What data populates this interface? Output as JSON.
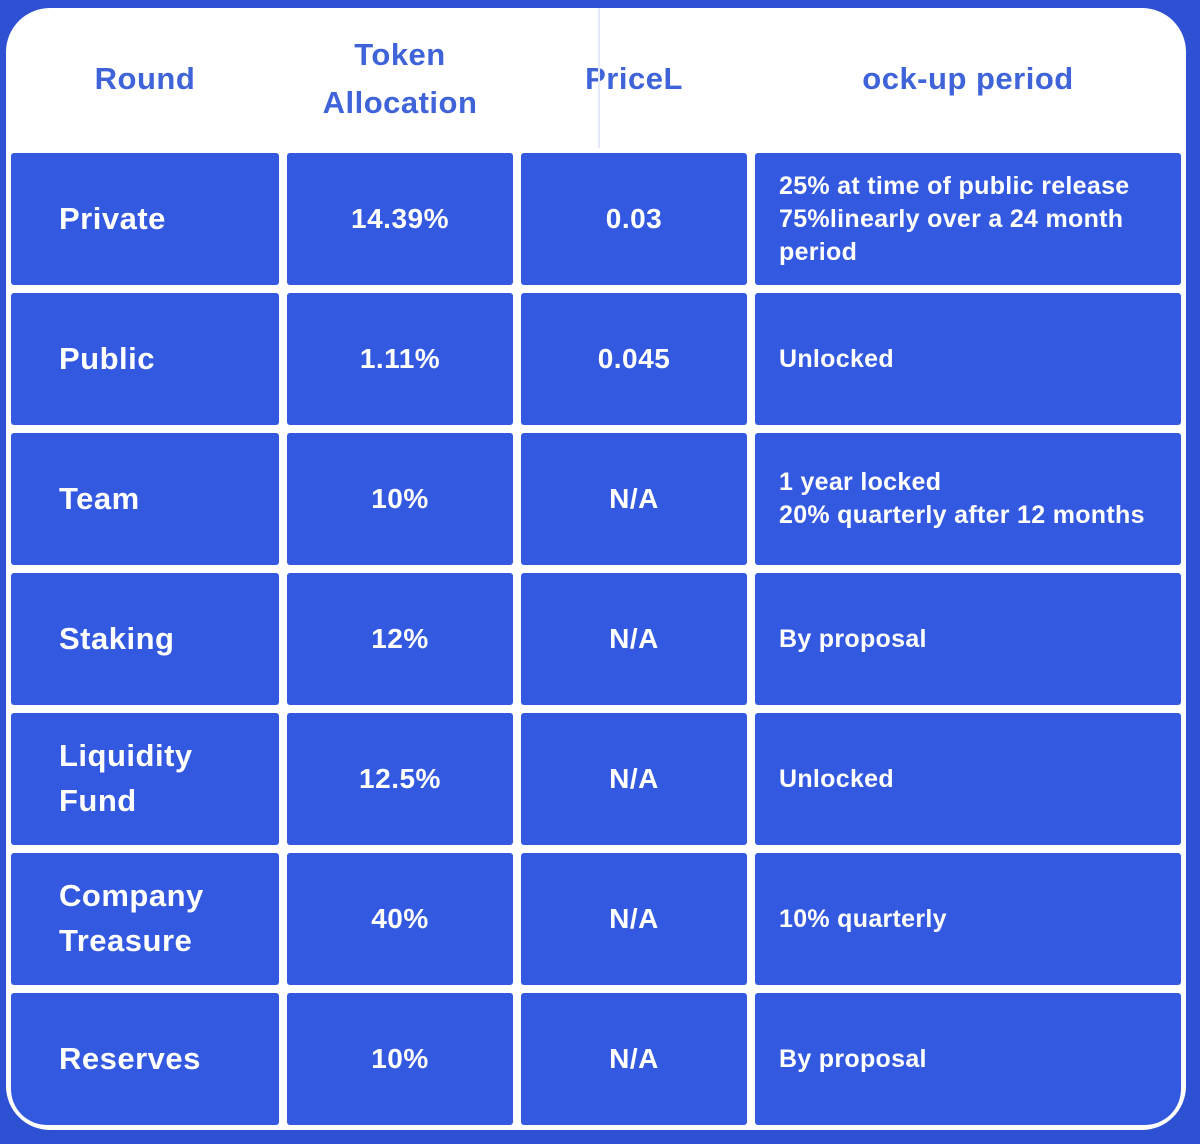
{
  "page": {
    "background_color": "#2e51d4",
    "panel_color": "#ffffff",
    "cell_color": "#3359e0",
    "header_text_color": "#3f63d8",
    "cell_text_color": "#ffffff"
  },
  "table": {
    "headers": {
      "round": "Round",
      "allocation": "Token\nAllocation",
      "price": "PriceL",
      "lockup": "ock-up period"
    },
    "rows": [
      {
        "round": "Private",
        "allocation": "14.39%",
        "price": "0.03",
        "lockup": "25% at time of public release\n75%linearly over a 24 month\nperiod"
      },
      {
        "round": "Public",
        "allocation": "1.11%",
        "price": "0.045",
        "lockup": "Unlocked"
      },
      {
        "round": "Team",
        "allocation": "10%",
        "price": "N/A",
        "lockup": "1 year locked\n20% quarterly after 12 months"
      },
      {
        "round": "Staking",
        "allocation": "12%",
        "price": "N/A",
        "lockup": "By proposal"
      },
      {
        "round": "Liquidity\nFund",
        "allocation": "12.5%",
        "price": "N/A",
        "lockup": "Unlocked"
      },
      {
        "round": "Company\nTreasure",
        "allocation": "40%",
        "price": "N/A",
        "lockup": "10% quarterly"
      },
      {
        "round": "Reserves",
        "allocation": "10%",
        "price": "N/A",
        "lockup": "By proposal"
      }
    ]
  },
  "chart_data": {
    "type": "table",
    "title": "Token allocation and lock-up schedule",
    "columns": [
      "Round",
      "Token Allocation",
      "PriceL",
      "ock-up period"
    ],
    "rows": [
      [
        "Private",
        "14.39%",
        "0.03",
        "25% at time of public release 75%linearly over a 24 month period"
      ],
      [
        "Public",
        "1.11%",
        "0.045",
        "Unlocked"
      ],
      [
        "Team",
        "10%",
        "N/A",
        "1 year locked 20% quarterly after 12 months"
      ],
      [
        "Staking",
        "12%",
        "N/A",
        "By proposal"
      ],
      [
        "Liquidity Fund",
        "12.5%",
        "N/A",
        "Unlocked"
      ],
      [
        "Company Treasure",
        "40%",
        "N/A",
        "10% quarterly"
      ],
      [
        "Reserves",
        "10%",
        "N/A",
        "By proposal"
      ]
    ]
  }
}
